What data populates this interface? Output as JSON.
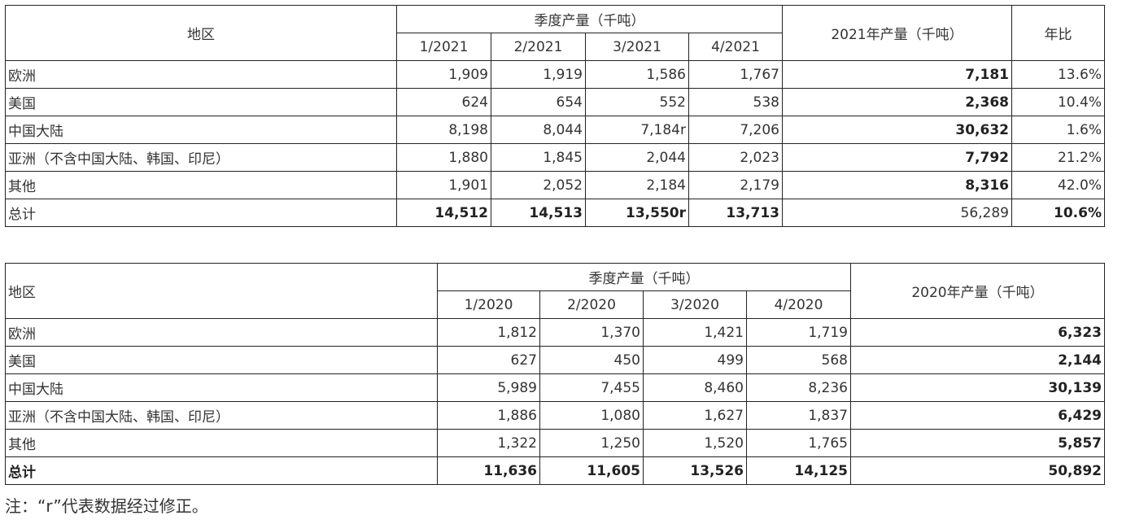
{
  "table2021": {
    "col_region": "地区",
    "col_quarterly": "季度产量（千吨）",
    "quarters": [
      "1/2021",
      "2/2021",
      "3/2021",
      "4/2021"
    ],
    "col_annual": "2021年产量（千吨）",
    "col_yoy": "年比",
    "rows": [
      {
        "region": "欧洲",
        "q": [
          "1,909",
          "1,919",
          "1,586",
          "1,767"
        ],
        "annual": "7,181",
        "yoy": "13.6%"
      },
      {
        "region": "美国",
        "q": [
          "624",
          "654",
          "552",
          "538"
        ],
        "annual": "2,368",
        "yoy": "10.4%"
      },
      {
        "region": "中国大陆",
        "q": [
          "8,198",
          "8,044",
          "7,184r",
          "7,206"
        ],
        "annual": "30,632",
        "yoy": "1.6%"
      },
      {
        "region": "亚洲（不含中国大陆、韩国、印尼）",
        "q": [
          "1,880",
          "1,845",
          "2,044",
          "2,023"
        ],
        "annual": "7,792",
        "yoy": "21.2%"
      },
      {
        "region": "其他",
        "q": [
          "1,901",
          "2,052",
          "2,184",
          "2,179"
        ],
        "annual": "8,316",
        "yoy": "42.0%"
      },
      {
        "region": "总计",
        "q": [
          "14,512",
          "14,513",
          "13,550r",
          "13,713"
        ],
        "annual": "56,289",
        "yoy": "10.6%"
      }
    ]
  },
  "table2020": {
    "col_region": "地区",
    "col_quarterly": "季度产量（千吨）",
    "quarters": [
      "1/2020",
      "2/2020",
      "3/2020",
      "4/2020"
    ],
    "col_annual": "2020年产量（千吨）",
    "rows": [
      {
        "region": "欧洲",
        "q": [
          "1,812",
          "1,370",
          "1,421",
          "1,719"
        ],
        "annual": "6,323"
      },
      {
        "region": "美国",
        "q": [
          "627",
          "450",
          "499",
          "568"
        ],
        "annual": "2,144"
      },
      {
        "region": "中国大陆",
        "q": [
          "5,989",
          "7,455",
          "8,460",
          "8,236"
        ],
        "annual": "30,139"
      },
      {
        "region": "亚洲（不含中国大陆、韩国、印尼）",
        "q": [
          "1,886",
          "1,080",
          "1,627",
          "1,837"
        ],
        "annual": "6,429"
      },
      {
        "region": "其他",
        "q": [
          "1,322",
          "1,250",
          "1,520",
          "1,765"
        ],
        "annual": "5,857"
      },
      {
        "region": "总计",
        "q": [
          "11,636",
          "11,605",
          "13,526",
          "14,125"
        ],
        "annual": "50,892"
      }
    ]
  },
  "note": "注：“r”代表数据经过修正。"
}
